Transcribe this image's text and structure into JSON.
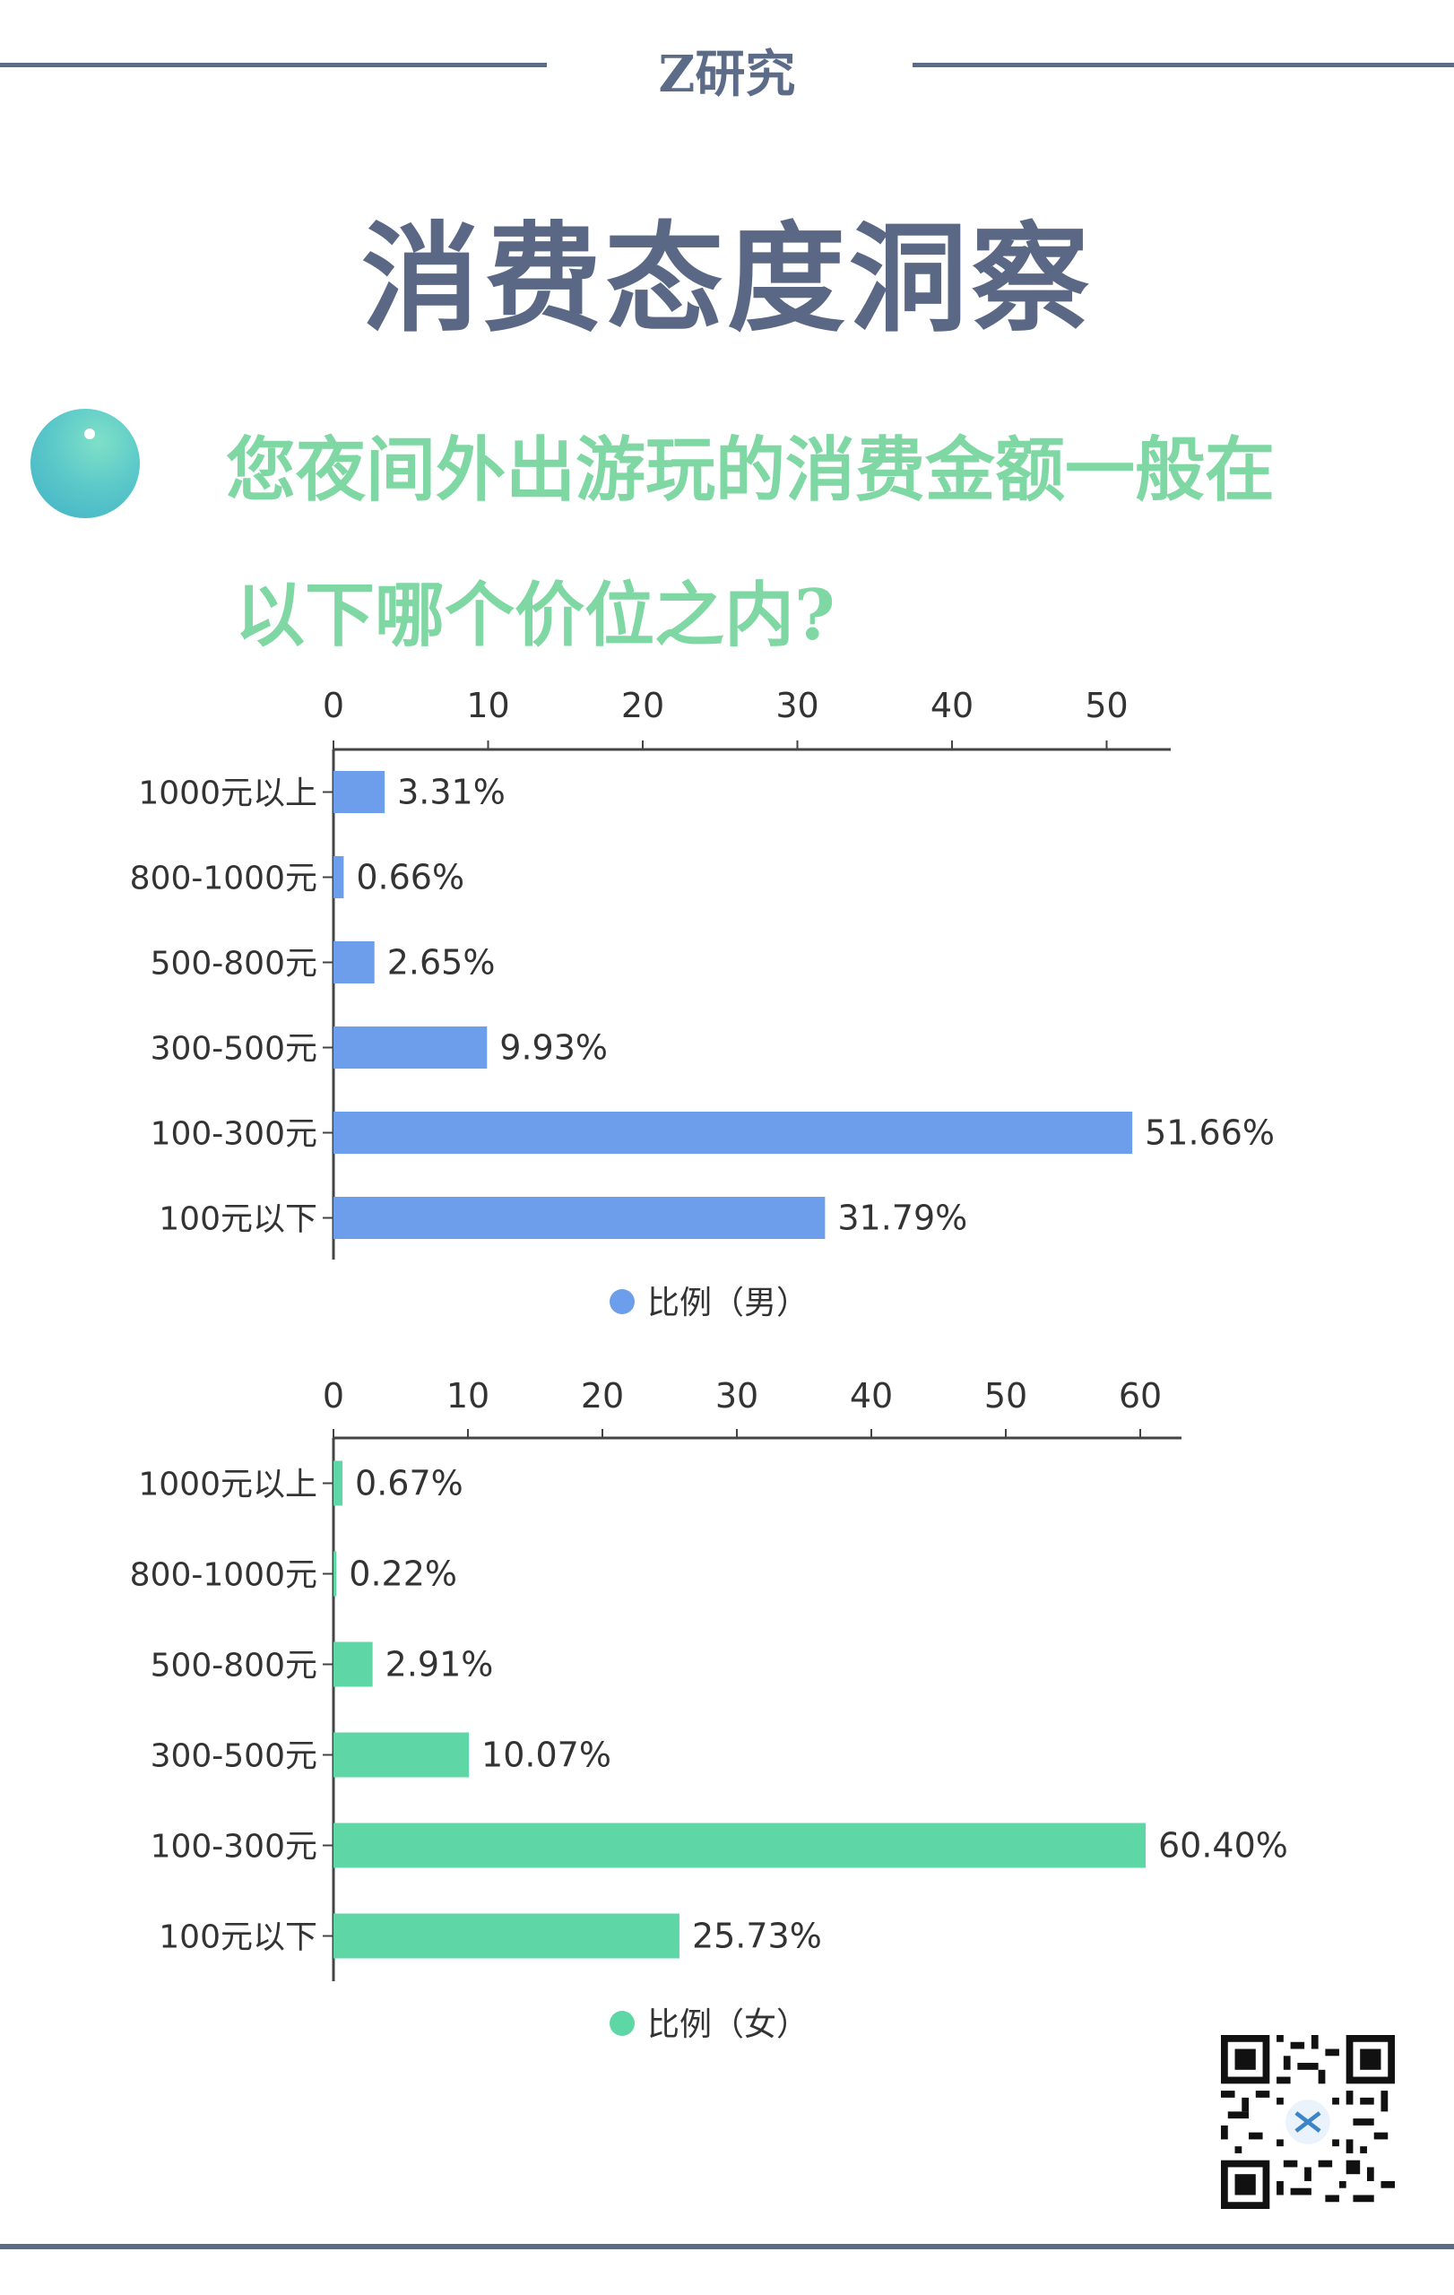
{
  "header": {
    "brand": "Z研究",
    "title": "消费态度洞察"
  },
  "question": {
    "line1": "您夜间外出游玩的消费金额一般在",
    "line2": "以下哪个价位之内?"
  },
  "colors": {
    "male": "#6d9eeb",
    "female": "#5fd6a6",
    "heading": "#5a6885",
    "question": "#7fd7a3"
  },
  "icons": [
    "gradient-circle-icon",
    "qr-code-icon"
  ],
  "chart_data": [
    {
      "type": "bar",
      "orientation": "horizontal",
      "categories": [
        "1000元以上",
        "800-1000元",
        "500-800元",
        "300-500元",
        "100-300元",
        "100元以下"
      ],
      "series": [
        {
          "name": "比例（男）",
          "values": [
            3.31,
            0.66,
            2.65,
            9.93,
            51.66,
            31.79
          ],
          "labels": [
            "3.31%",
            "0.66%",
            "2.65%",
            "9.93%",
            "51.66%",
            "31.79%"
          ]
        }
      ],
      "xticks": [
        0,
        10,
        20,
        30,
        40,
        50
      ],
      "xlim": [
        0,
        54
      ],
      "axis_position": "top",
      "legend": "bottom",
      "grid": false
    },
    {
      "type": "bar",
      "orientation": "horizontal",
      "categories": [
        "1000元以上",
        "800-1000元",
        "500-800元",
        "300-500元",
        "100-300元",
        "100元以下"
      ],
      "series": [
        {
          "name": "比例（女）",
          "values": [
            0.67,
            0.22,
            2.91,
            10.07,
            60.4,
            25.73
          ],
          "labels": [
            "0.67%",
            "0.22%",
            "2.91%",
            "10.07%",
            "60.40%",
            "25.73%"
          ]
        }
      ],
      "xticks": [
        0,
        10,
        20,
        30,
        40,
        50,
        60
      ],
      "xlim": [
        0,
        63
      ],
      "axis_position": "top",
      "legend": "bottom",
      "grid": false
    }
  ]
}
